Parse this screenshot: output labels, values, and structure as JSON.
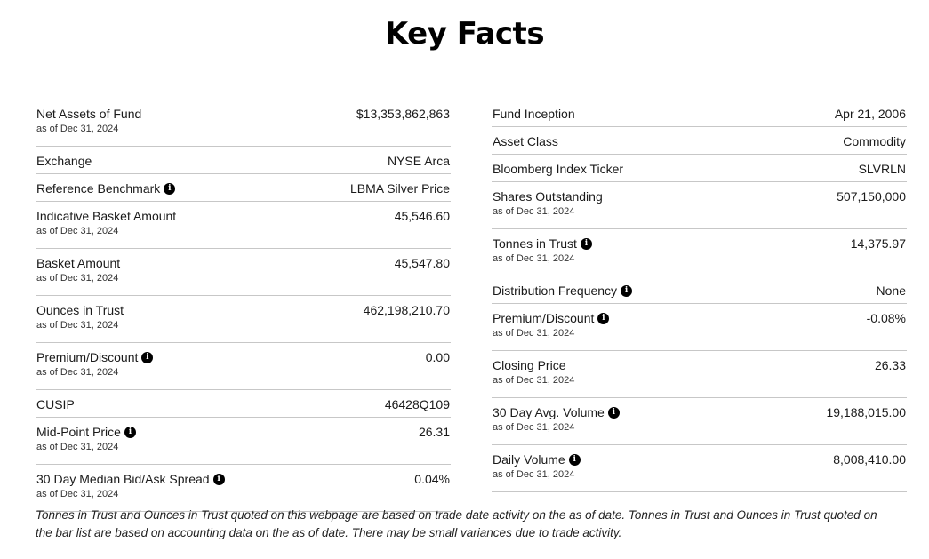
{
  "header": {
    "title": "Key Facts"
  },
  "left_column": [
    {
      "label": "Net Assets of Fund",
      "as_of": "as of Dec 31, 2024",
      "value": "$13,353,862,863",
      "info": false
    },
    {
      "label": "Exchange",
      "as_of": "",
      "value": "NYSE Arca",
      "info": false
    },
    {
      "label": "Reference Benchmark",
      "as_of": "",
      "value": "LBMA Silver Price",
      "info": true
    },
    {
      "label": "Indicative Basket Amount",
      "as_of": "as of Dec 31, 2024",
      "value": "45,546.60",
      "info": false
    },
    {
      "label": "Basket Amount",
      "as_of": "as of Dec 31, 2024",
      "value": "45,547.80",
      "info": false
    },
    {
      "label": "Ounces in Trust",
      "as_of": "as of Dec 31, 2024",
      "value": "462,198,210.70",
      "info": false
    },
    {
      "label": "Premium/Discount",
      "as_of": "as of Dec 31, 2024",
      "value": "0.00",
      "info": true
    },
    {
      "label": "CUSIP",
      "as_of": "",
      "value": "46428Q109",
      "info": false
    },
    {
      "label": "Mid-Point Price",
      "as_of": "as of Dec 31, 2024",
      "value": "26.31",
      "info": true
    },
    {
      "label": "30 Day Median Bid/Ask Spread",
      "as_of": "as of Dec 31, 2024",
      "value": "0.04%",
      "info": true
    }
  ],
  "right_column": [
    {
      "label": "Fund Inception",
      "as_of": "",
      "value": "Apr 21, 2006",
      "info": false
    },
    {
      "label": "Asset Class",
      "as_of": "",
      "value": "Commodity",
      "info": false
    },
    {
      "label": "Bloomberg Index Ticker",
      "as_of": "",
      "value": "SLVRLN",
      "info": false
    },
    {
      "label": "Shares Outstanding",
      "as_of": "as of Dec 31, 2024",
      "value": "507,150,000",
      "info": false
    },
    {
      "label": "Tonnes in Trust",
      "as_of": "as of Dec 31, 2024",
      "value": "14,375.97",
      "info": true
    },
    {
      "label": "Distribution Frequency",
      "as_of": "",
      "value": "None",
      "info": true
    },
    {
      "label": "Premium/Discount",
      "as_of": "as of Dec 31, 2024",
      "value": "-0.08%",
      "info": true
    },
    {
      "label": "Closing Price",
      "as_of": "as of Dec 31, 2024",
      "value": "26.33",
      "info": false
    },
    {
      "label": "30 Day Avg. Volume",
      "as_of": "as of Dec 31, 2024",
      "value": "19,188,015.00",
      "info": true
    },
    {
      "label": "Daily Volume",
      "as_of": "as of Dec 31, 2024",
      "value": "8,008,410.00",
      "info": true
    }
  ],
  "footnote": "Tonnes in Trust and Ounces in Trust quoted on this webpage are based on trade date activity on the as of date. Tonnes in Trust and Ounces in Trust quoted on the bar list are based on accounting data on the as of date. There may be small variances due to trade activity.",
  "icons": {
    "info": "info-circle-icon",
    "info_glyph": "i"
  }
}
